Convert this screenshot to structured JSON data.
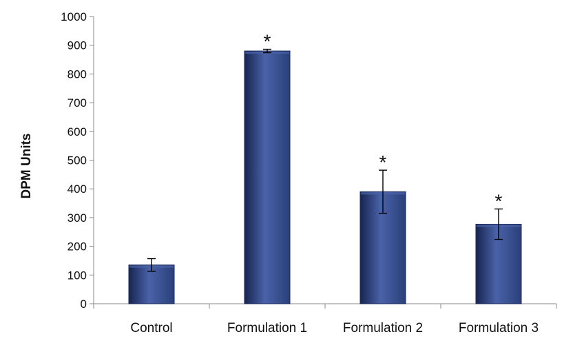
{
  "chart_data": {
    "type": "bar",
    "categories": [
      "Control",
      "Formulation 1",
      "Formulation 2",
      "Formulation 3"
    ],
    "values": [
      135,
      880,
      390,
      277
    ],
    "error": [
      22,
      6,
      75,
      53
    ],
    "significance": [
      "",
      "*",
      "*",
      "*"
    ],
    "title": "",
    "xlabel": "",
    "ylabel": "DPM Units",
    "ylim": [
      0,
      1000
    ],
    "yticks": [
      0,
      100,
      200,
      300,
      400,
      500,
      600,
      700,
      800,
      900,
      1000
    ],
    "grid": false,
    "legend": "none",
    "colors": {
      "bar": "#2a3f7a",
      "bar_highlight": "#4a62a8",
      "bar_shadow": "#16254f",
      "axis": "#888888"
    }
  }
}
